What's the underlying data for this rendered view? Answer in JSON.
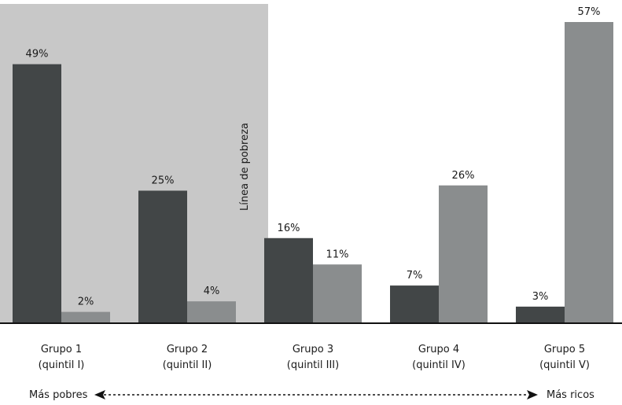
{
  "chart_data": {
    "type": "bar",
    "categories": [
      {
        "line1": "Grupo 1",
        "line2": "(quintil I)"
      },
      {
        "line1": "Grupo 2",
        "line2": "(quintil II)"
      },
      {
        "line1": "Grupo 3",
        "line2": "(quintil III)"
      },
      {
        "line1": "Grupo 4",
        "line2": "(quintil IV)"
      },
      {
        "line1": "Grupo 5",
        "line2": "(quintil V)"
      }
    ],
    "series": [
      {
        "values": [
          49,
          25,
          16,
          7,
          3
        ],
        "labels": [
          "49%",
          "25%",
          "16%",
          "7%",
          "3%"
        ],
        "color": "#424647"
      },
      {
        "values": [
          2,
          4,
          11,
          26,
          57
        ],
        "labels": [
          "2%",
          "4%",
          "11%",
          "26%",
          "57%"
        ],
        "color": "#8a8d8e"
      }
    ],
    "ylim": [
      0,
      57
    ],
    "shaded_region": {
      "from_category": 0,
      "to_category": 1,
      "color": "#c8c8c8"
    },
    "poverty_line_label": "Línea de pobreza",
    "footer": {
      "left": "Más pobres",
      "right": "Más ricos"
    }
  }
}
